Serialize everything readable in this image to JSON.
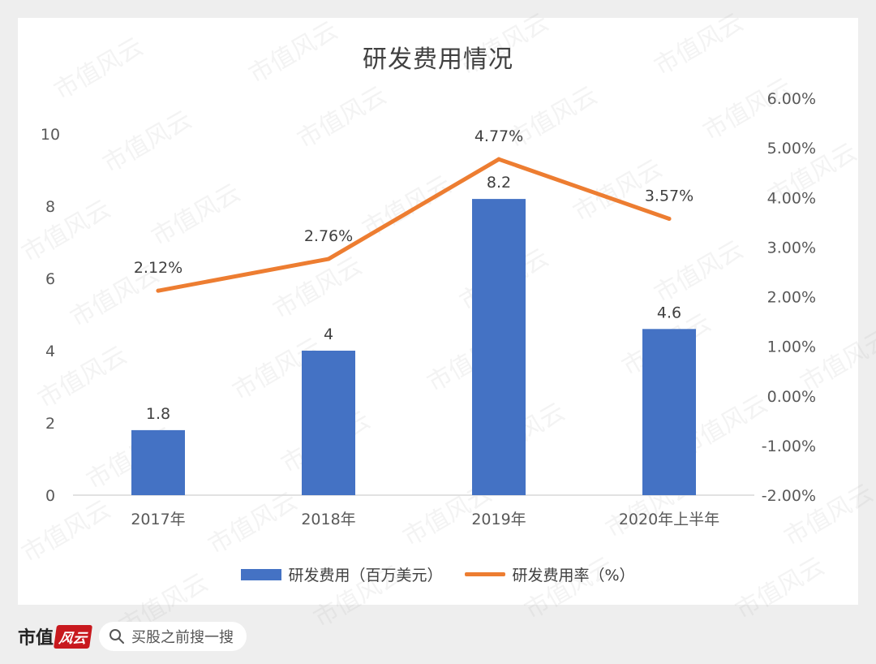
{
  "chart_data": {
    "type": "bar",
    "title": "研发费用情况",
    "categories": [
      "2017年",
      "2018年",
      "2019年",
      "2020年上半年"
    ],
    "series": [
      {
        "name": "研发费用（百万美元）",
        "type": "bar",
        "axis": "left",
        "color": "#4472c4",
        "values": [
          1.8,
          4,
          8.2,
          4.6
        ],
        "labels": [
          "1.8",
          "4",
          "8.2",
          "4.6"
        ]
      },
      {
        "name": "研发费用率（%）",
        "type": "line",
        "axis": "right",
        "color": "#ed7d31",
        "values": [
          2.12,
          2.76,
          4.77,
          3.57
        ],
        "labels": [
          "2.12%",
          "2.76%",
          "4.77%",
          "3.57%"
        ]
      }
    ],
    "y_left": {
      "min": 0,
      "max": 10,
      "ticks": [
        "0",
        "2",
        "4",
        "6",
        "8",
        "10"
      ],
      "tick_values": [
        0,
        2,
        4,
        6,
        8,
        10
      ]
    },
    "y_right": {
      "min": -2,
      "max": 6,
      "ticks": [
        "-2.00%",
        "-1.00%",
        "0.00%",
        "1.00%",
        "2.00%",
        "3.00%",
        "4.00%",
        "5.00%",
        "6.00%"
      ],
      "tick_values": [
        -2,
        -1,
        0,
        1,
        2,
        3,
        4,
        5,
        6
      ]
    },
    "grid": false,
    "legend_position": "bottom"
  },
  "watermark_text": "市值风云",
  "footer": {
    "brand_text": "市值",
    "brand_logo": "风云",
    "search_placeholder": "买股之前搜一搜",
    "search_icon": "search-icon"
  }
}
